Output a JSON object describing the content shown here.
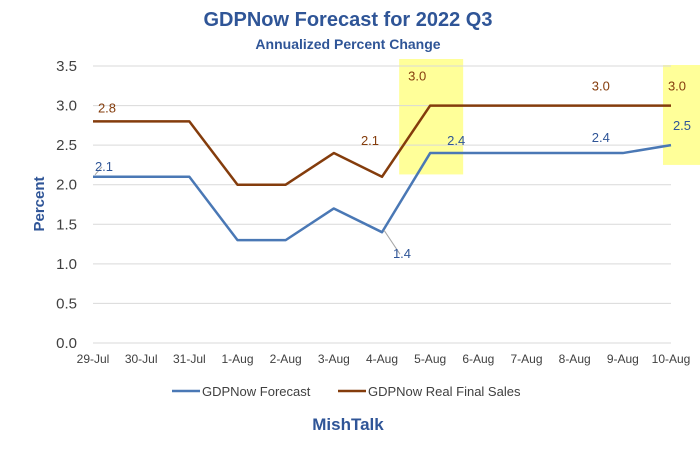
{
  "chart_data": {
    "type": "line",
    "title": "GDPNow Forecast for 2022 Q3",
    "subtitle": "Annualized Percent Change",
    "ylabel": "Percent",
    "xlabel": "",
    "footer": "MishTalk",
    "ylim": [
      0,
      3.5
    ],
    "yticks": [
      "0.0",
      "0.5",
      "1.0",
      "1.5",
      "2.0",
      "2.5",
      "3.0",
      "3.5"
    ],
    "categories": [
      "29-Jul",
      "30-Jul",
      "31-Jul",
      "1-Aug",
      "2-Aug",
      "3-Aug",
      "4-Aug",
      "5-Aug",
      "6-Aug",
      "7-Aug",
      "8-Aug",
      "9-Aug",
      "10-Aug"
    ],
    "grid": "horizontal",
    "legend": "bottom",
    "series": [
      {
        "name": "GDPNow Forecast",
        "color": "#4a78b5",
        "values": [
          2.1,
          2.1,
          2.1,
          1.3,
          1.3,
          1.7,
          1.4,
          2.4,
          2.4,
          2.4,
          2.4,
          2.4,
          2.5
        ],
        "labels": [
          {
            "i": 0,
            "text": "2.1"
          },
          {
            "i": 6,
            "text": "1.4"
          },
          {
            "i": 7,
            "text": "2.4"
          },
          {
            "i": 11,
            "text": "2.4"
          },
          {
            "i": 12,
            "text": "2.5"
          }
        ]
      },
      {
        "name": "GDPNow Real Final Sales",
        "color": "#843c0c",
        "values": [
          2.8,
          2.8,
          2.8,
          2.0,
          2.0,
          2.4,
          2.1,
          3.0,
          3.0,
          3.0,
          3.0,
          3.0,
          3.0
        ],
        "labels": [
          {
            "i": 0,
            "text": "2.8"
          },
          {
            "i": 6,
            "text": "2.1"
          },
          {
            "i": 7,
            "text": "3.0"
          },
          {
            "i": 11,
            "text": "3.0"
          },
          {
            "i": 12,
            "text": "3.0"
          }
        ]
      }
    ],
    "highlights": [
      {
        "category": "5-Aug",
        "color": "#ffff99"
      },
      {
        "category": "10-Aug",
        "color": "#ffff99"
      }
    ]
  }
}
